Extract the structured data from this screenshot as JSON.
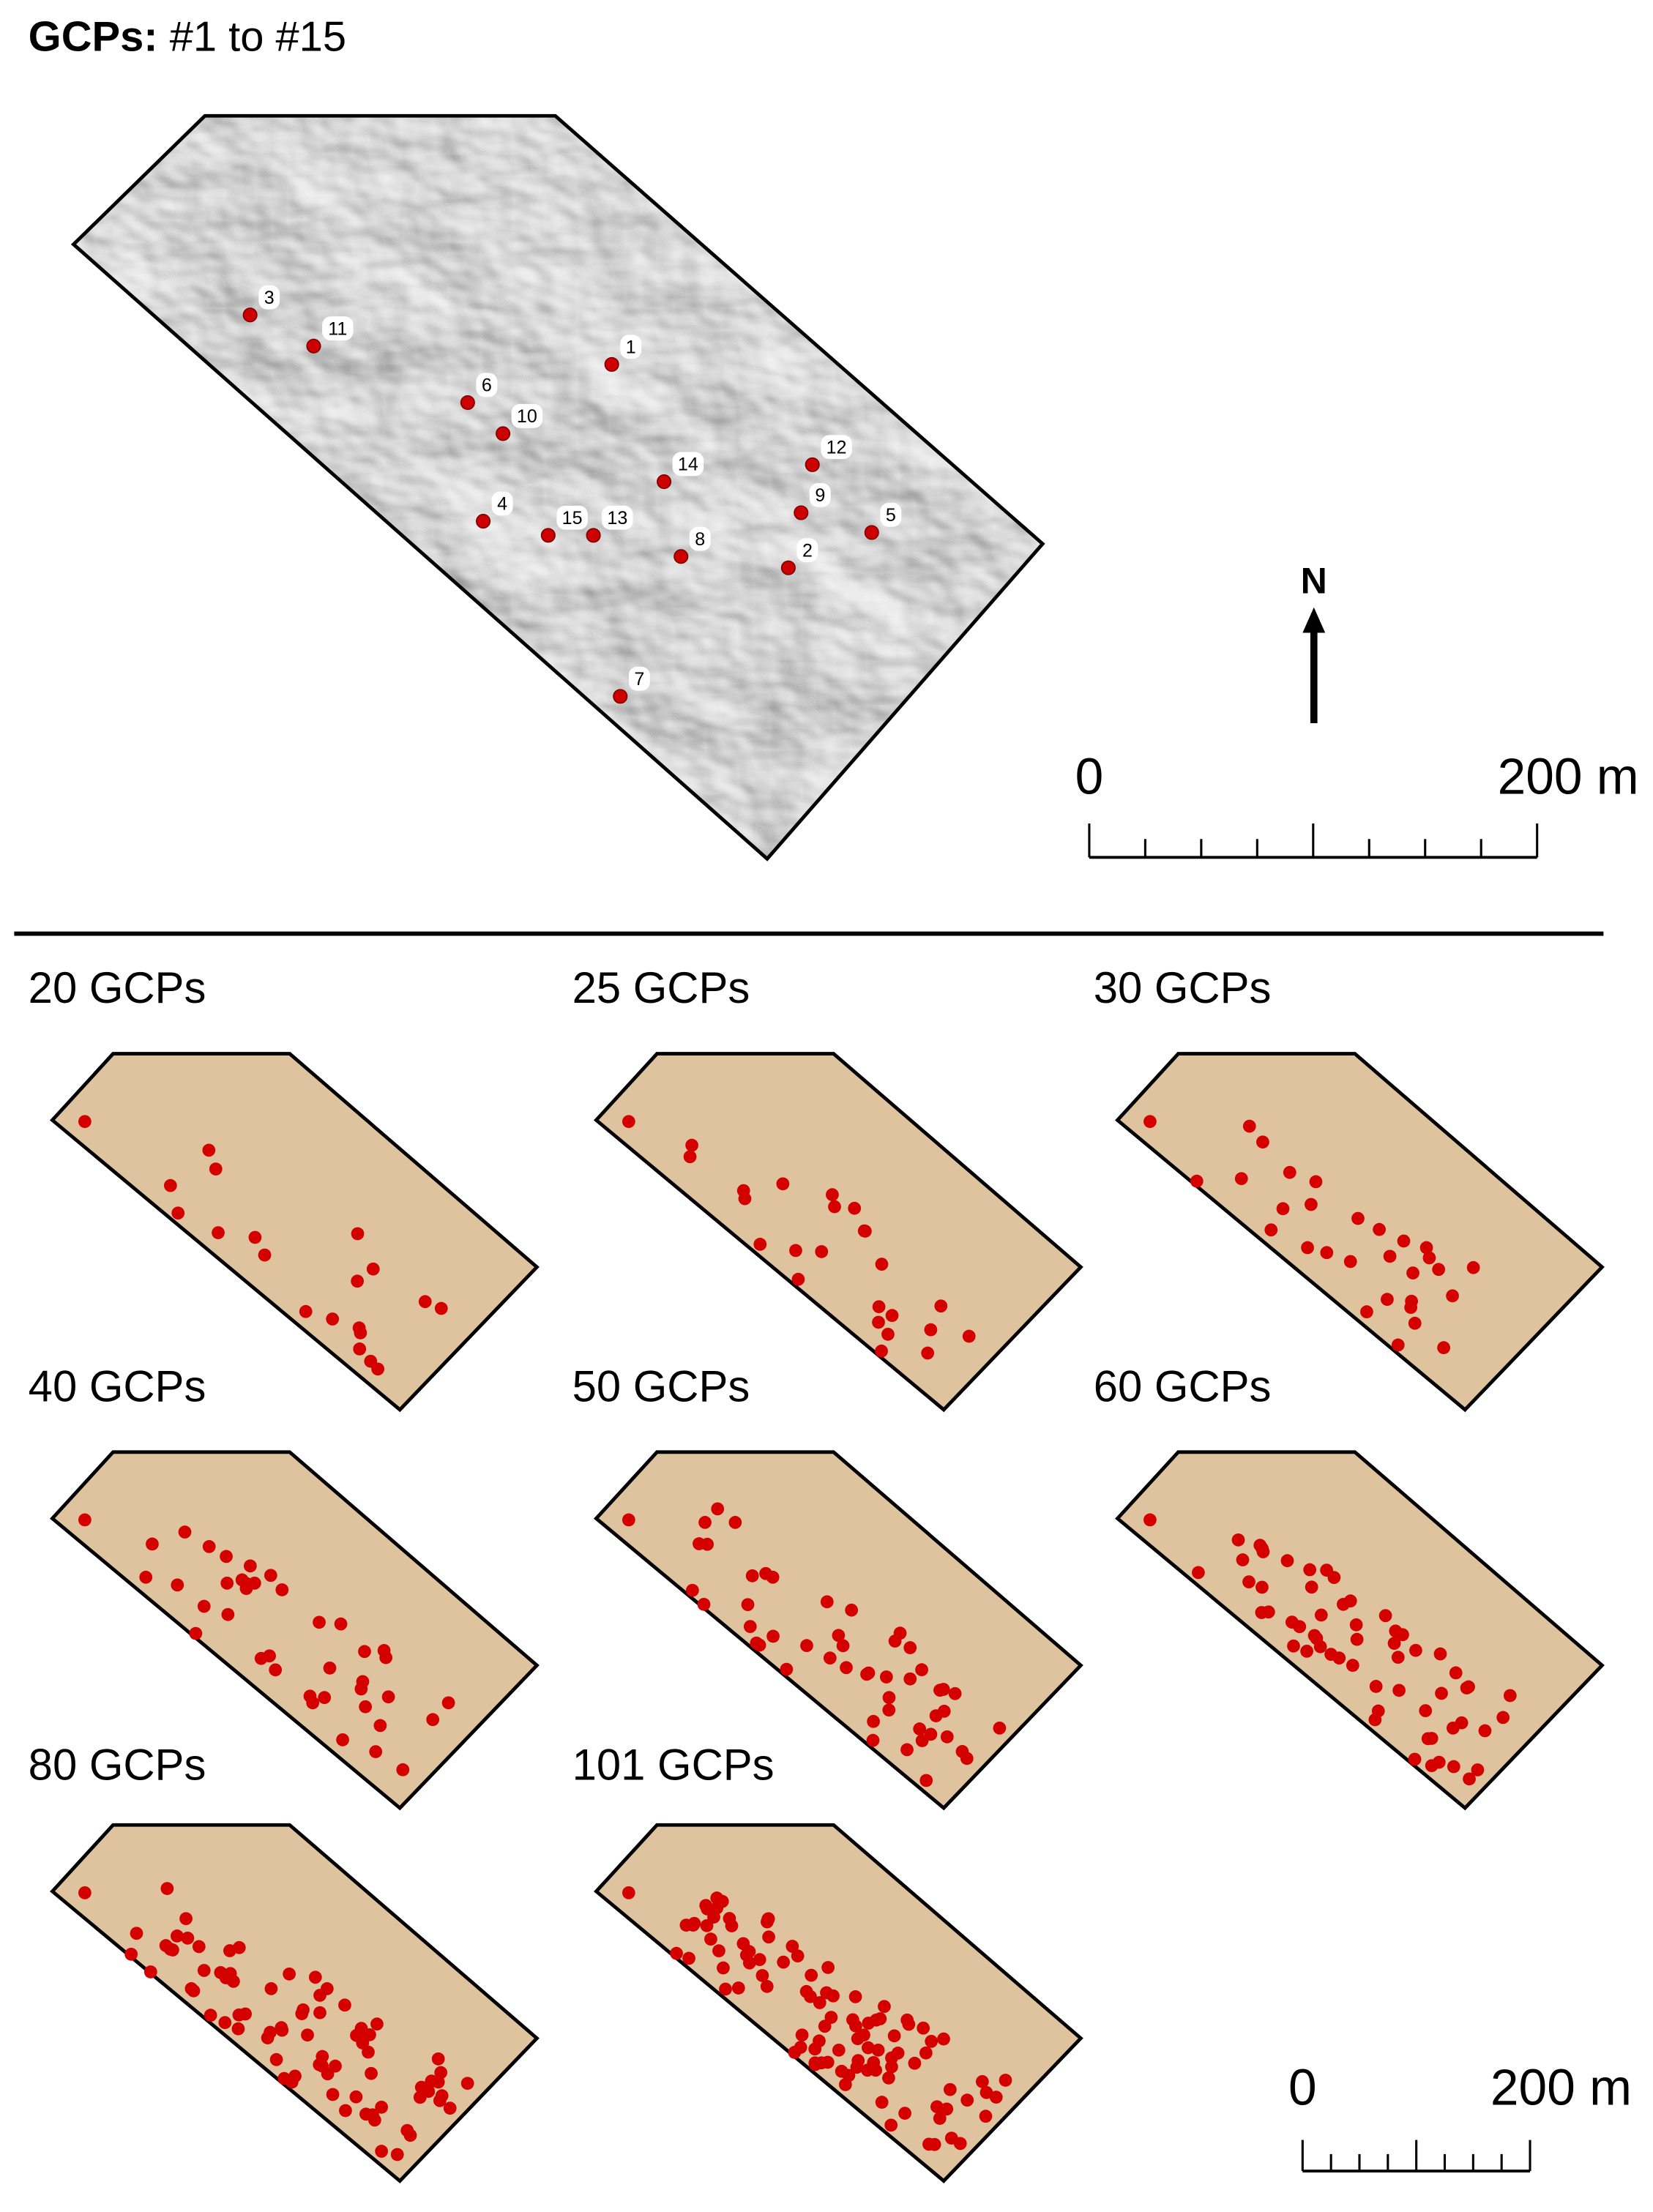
{
  "header": {
    "bold": "GCPs:",
    "text": "#1 to #15"
  },
  "overview": {
    "gcp_labels": [
      "1",
      "2",
      "3",
      "4",
      "5",
      "6",
      "7",
      "8",
      "9",
      "10",
      "11",
      "12",
      "13",
      "14",
      "15"
    ]
  },
  "north": "N",
  "scale_top": {
    "start": "0",
    "end": "200 m"
  },
  "panels": [
    {
      "title": "20 GCPs"
    },
    {
      "title": "25 GCPs"
    },
    {
      "title": "30 GCPs"
    },
    {
      "title": "40 GCPs"
    },
    {
      "title": "50 GCPs"
    },
    {
      "title": "60 GCPs"
    },
    {
      "title": "80 GCPs"
    },
    {
      "title": "101 GCPs"
    }
  ],
  "scale_bottom": {
    "start": "0",
    "end": "200 m"
  }
}
